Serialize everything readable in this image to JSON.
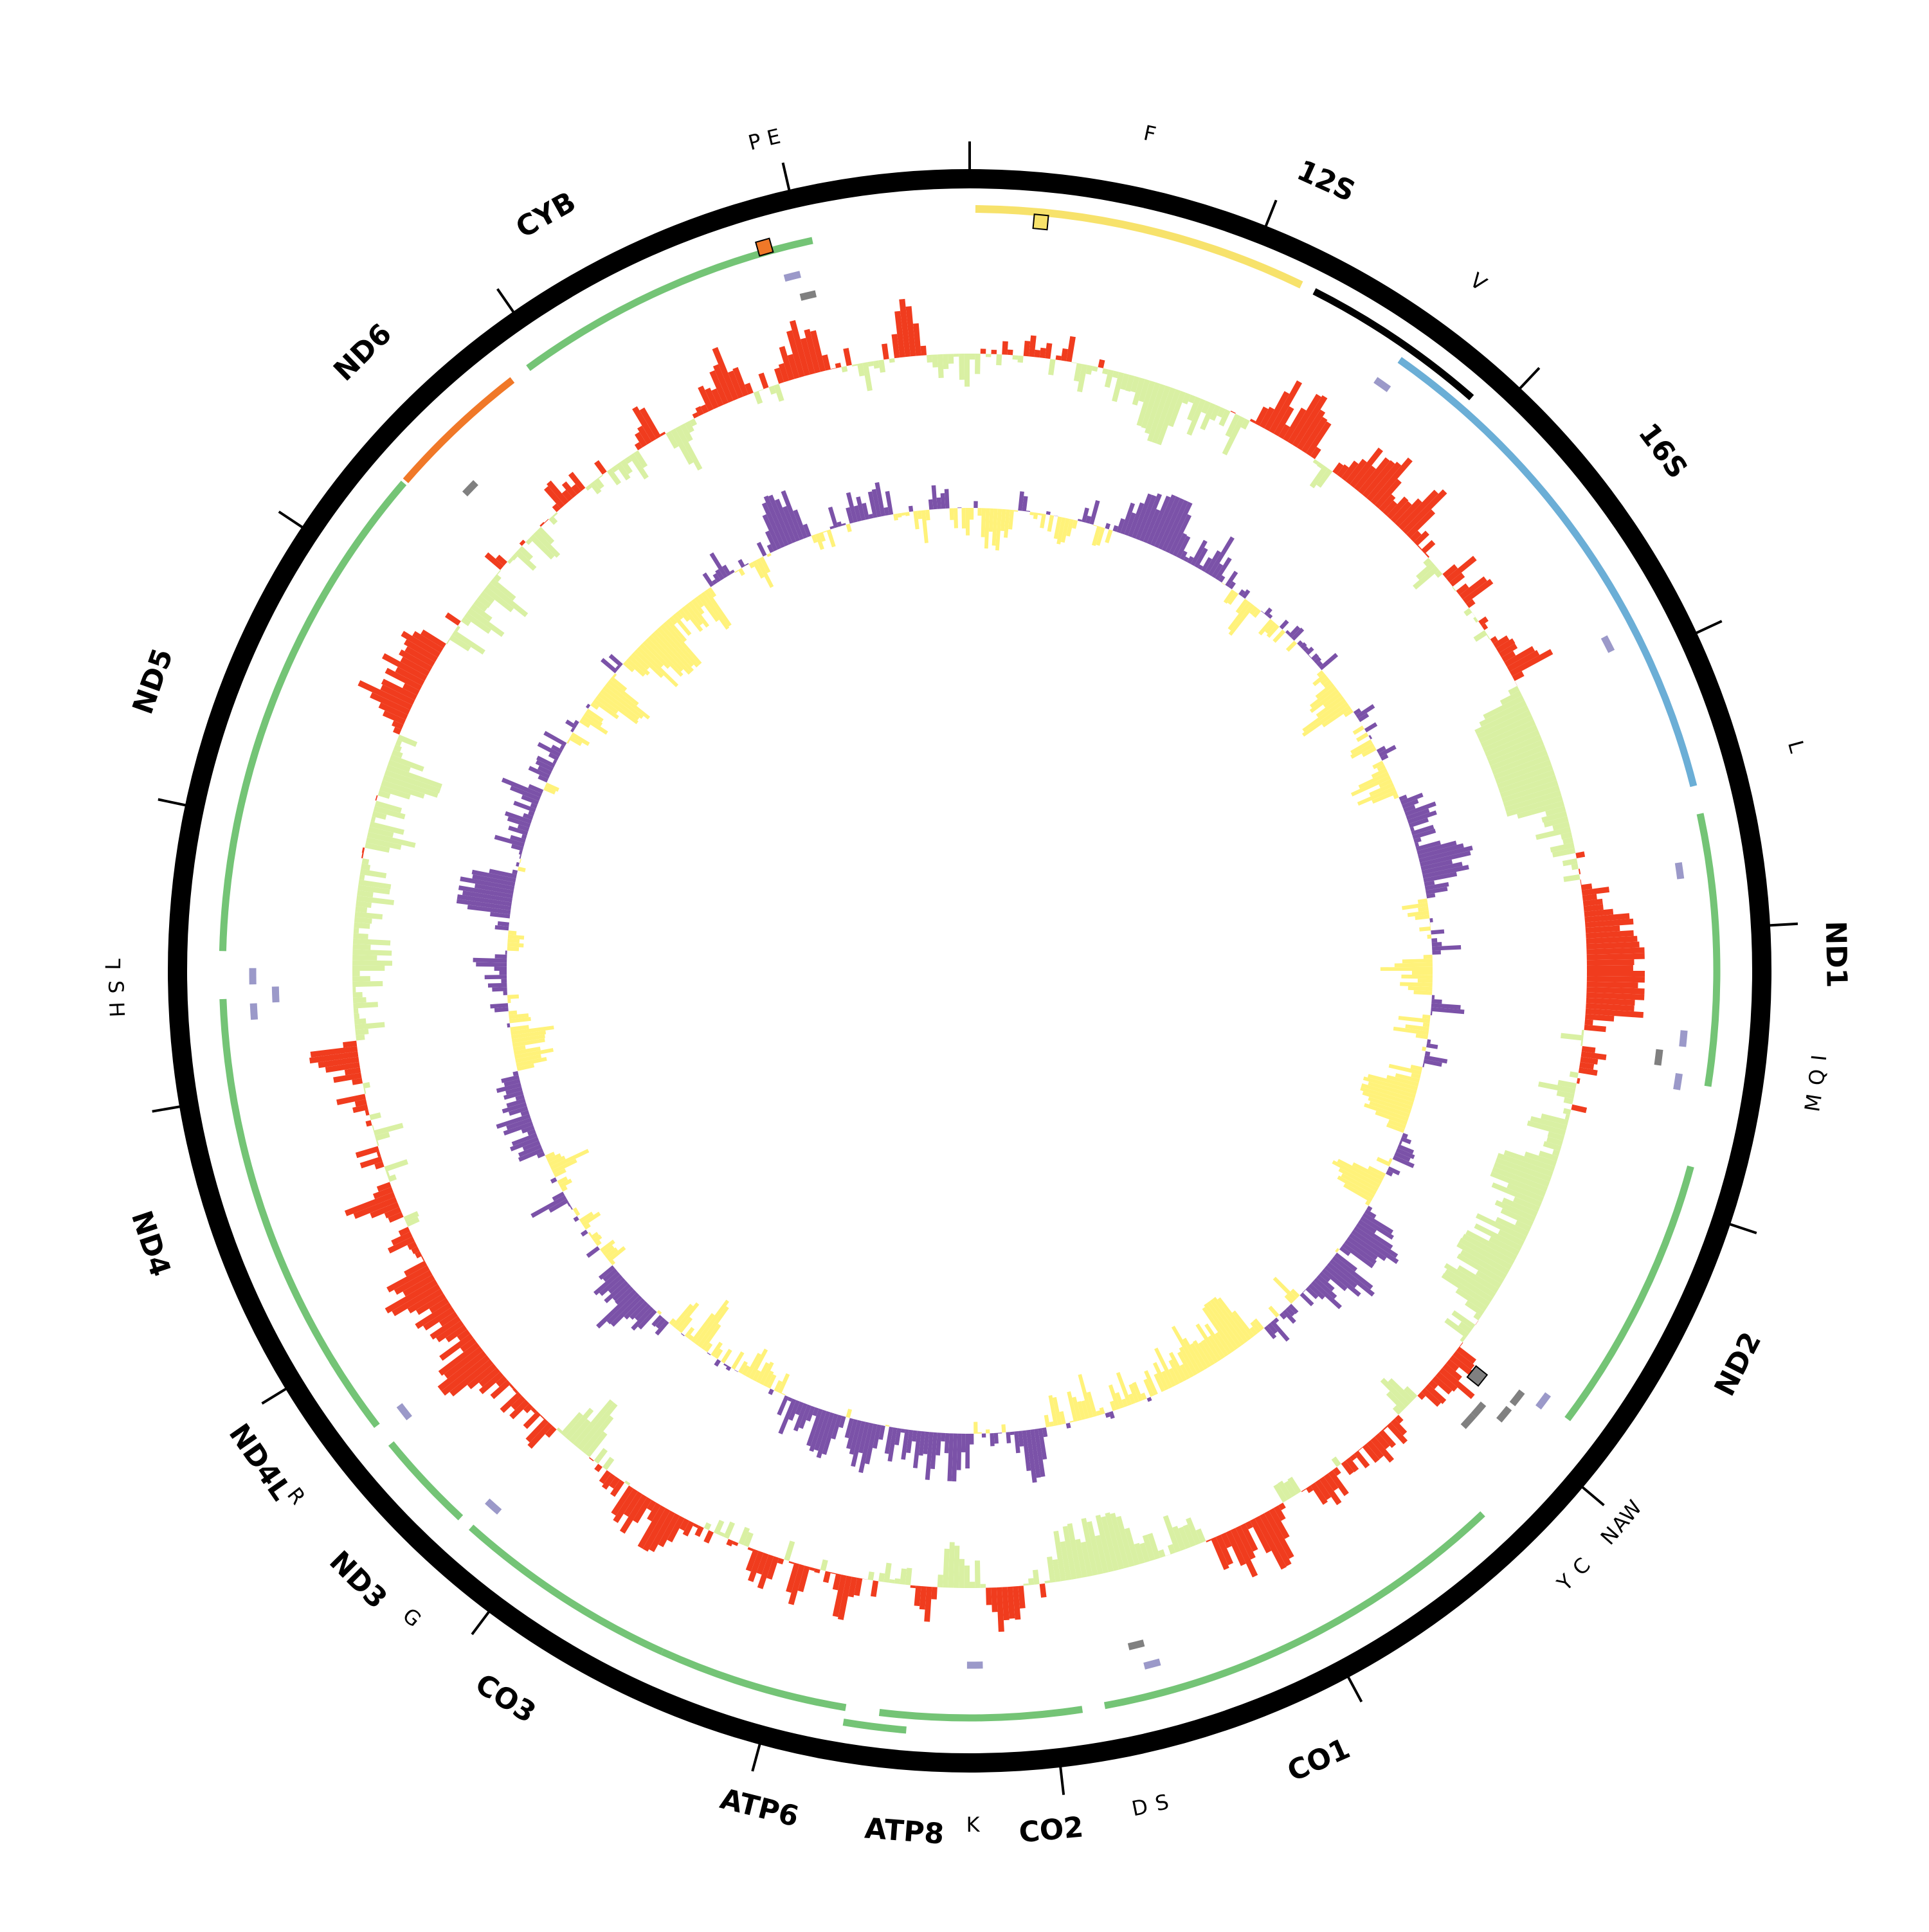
{
  "map": {
    "genome_length": 16600,
    "backbone_color": "#000000",
    "tick_positions": [
      0,
      1000,
      2000,
      3000,
      4000,
      5000,
      6000,
      7000,
      8000,
      9000,
      10000,
      11000,
      12000,
      13000,
      14000,
      15000,
      16000
    ]
  },
  "gene_labels": [
    {
      "text": "12S",
      "pos": 1120
    },
    {
      "text": "16S",
      "pos": 2450
    },
    {
      "text": "ND1",
      "pos": 4100
    },
    {
      "text": "ND2",
      "pos": 5400
    },
    {
      "text": "CO1",
      "pos": 7200
    },
    {
      "text": "CO2",
      "pos": 8050
    },
    {
      "text": "ATP8",
      "pos": 8500
    },
    {
      "text": "ATP6",
      "pos": 8950
    },
    {
      "text": "CO3",
      "pos": 9800
    },
    {
      "text": "ND3",
      "pos": 10380
    },
    {
      "text": "ND4L",
      "pos": 10850
    },
    {
      "text": "ND4",
      "pos": 11600
    },
    {
      "text": "ND5",
      "pos": 13350
    },
    {
      "text": "ND6",
      "pos": 14550
    },
    {
      "text": "CYB",
      "pos": 15250
    }
  ],
  "trna_labels": [
    {
      "text": "F",
      "pos": 560
    },
    {
      "text": "V",
      "pos": 1680
    },
    {
      "text": "L",
      "pos": 3450
    },
    {
      "text": "I",
      "pos": 4420
    },
    {
      "text": "Q",
      "pos": 4480
    },
    {
      "text": "M",
      "pos": 4560
    },
    {
      "text": "W",
      "pos": 5960
    },
    {
      "text": "A",
      "pos": 6010
    },
    {
      "text": "N",
      "pos": 6060
    },
    {
      "text": "C",
      "pos": 6190
    },
    {
      "text": "Y",
      "pos": 6260
    },
    {
      "text": "S",
      "pos": 7700
    },
    {
      "text": "D",
      "pos": 7770
    },
    {
      "text": "K",
      "pos": 8290
    },
    {
      "text": "G",
      "pos": 10180
    },
    {
      "text": "R",
      "pos": 10700
    },
    {
      "text": "H",
      "pos": 12330
    },
    {
      "text": "S",
      "pos": 12400
    },
    {
      "text": "L",
      "pos": 12470
    },
    {
      "text": "P",
      "pos": 15930
    },
    {
      "text": "E",
      "pos": 15990
    }
  ],
  "features": [
    {
      "kind": "control_region",
      "start": 20,
      "end": 1190,
      "ring": "outer",
      "color": "#f7e26b"
    },
    {
      "kind": "rRNA_12S",
      "start": 1240,
      "end": 1900,
      "ring": "outer",
      "color": "#000000"
    },
    {
      "kind": "rRNA_16S",
      "start": 1620,
      "end": 3490,
      "ring": "middle",
      "color": "#6baed6"
    },
    {
      "kind": "ND1",
      "start": 3590,
      "end": 4560,
      "ring": "middle",
      "color": "#74c476"
    },
    {
      "kind": "ND2",
      "start": 4850,
      "end": 5850,
      "ring": "middle",
      "color": "#74c476"
    },
    {
      "kind": "CO1",
      "start": 6300,
      "end": 7820,
      "ring": "middle",
      "color": "#74c476"
    },
    {
      "kind": "CO2",
      "start": 7900,
      "end": 8620,
      "ring": "middle",
      "color": "#74c476"
    },
    {
      "kind": "ATP8",
      "start": 8520,
      "end": 8740,
      "ring": "outer",
      "color": "#74c476"
    },
    {
      "kind": "ATP6",
      "start": 8740,
      "end": 9420,
      "ring": "middle",
      "color": "#74c476"
    },
    {
      "kind": "CO3",
      "start": 9420,
      "end": 10230,
      "ring": "middle",
      "color": "#74c476"
    },
    {
      "kind": "ND3",
      "start": 10280,
      "end": 10640,
      "ring": "middle",
      "color": "#74c476"
    },
    {
      "kind": "ND4L",
      "start": 10720,
      "end": 11000,
      "ring": "middle",
      "color": "#74c476"
    },
    {
      "kind": "ND4",
      "start": 10980,
      "end": 12350,
      "ring": "middle",
      "color": "#74c476"
    },
    {
      "kind": "ND5",
      "start": 12520,
      "end": 14330,
      "ring": "middle",
      "color": "#74c476"
    },
    {
      "kind": "ND6",
      "start": 14340,
      "end": 14860,
      "ring": "middle",
      "color": "#f07828"
    },
    {
      "kind": "CYB",
      "start": 14930,
      "end": 16040,
      "ring": "middle",
      "color": "#74c476"
    }
  ],
  "trna_marks": [
    {
      "pos": 1620,
      "ring": "trna_outer",
      "color": "#9b99c9"
    },
    {
      "pos": 2900,
      "ring": "trna_outer",
      "color": "#9b99c9"
    },
    {
      "pos": 3780,
      "ring": "trna_outer",
      "color": "#9b99c9"
    },
    {
      "pos": 4400,
      "ring": "trna_outer",
      "color": "#9b99c9"
    },
    {
      "pos": 4480,
      "ring": "trna_inner",
      "color": "#808080"
    },
    {
      "pos": 4560,
      "ring": "trna_outer",
      "color": "#9b99c9"
    },
    {
      "pos": 5850,
      "ring": "trna_outer",
      "color": "#9b99c9"
    },
    {
      "pos": 5900,
      "ring": "trna_inner",
      "color": "#808080"
    },
    {
      "pos": 5980,
      "ring": "trna_inner",
      "color": "#808080"
    },
    {
      "pos": 6030,
      "ring": "trna_inner2",
      "color": "#808080"
    },
    {
      "pos": 6090,
      "ring": "trna_inner2",
      "color": "#808080"
    },
    {
      "pos": 7620,
      "ring": "trna_outer",
      "color": "#9b99c9"
    },
    {
      "pos": 7660,
      "ring": "trna_inner",
      "color": "#808080"
    },
    {
      "pos": 8280,
      "ring": "trna_inner",
      "color": "#9b99c9"
    },
    {
      "pos": 10220,
      "ring": "trna_outer",
      "color": "#9b99c9"
    },
    {
      "pos": 10700,
      "ring": "trna_outer",
      "color": "#9b99c9"
    },
    {
      "pos": 12300,
      "ring": "trna_outer",
      "color": "#9b99c9"
    },
    {
      "pos": 12360,
      "ring": "trna_inner",
      "color": "#9b99c9"
    },
    {
      "pos": 12430,
      "ring": "trna_outer",
      "color": "#9b99c9"
    },
    {
      "pos": 14480,
      "ring": "trna_inner",
      "color": "#808080"
    },
    {
      "pos": 15940,
      "ring": "trna_outer",
      "color": "#9b99c9"
    },
    {
      "pos": 15980,
      "ring": "trna_inner",
      "color": "#808080"
    }
  ],
  "origin_marks": [
    {
      "pos": 250,
      "color": "#f7e26b"
    },
    {
      "pos": 15870,
      "color": "#f07828"
    },
    {
      "pos": 5930,
      "color": "#808080"
    }
  ],
  "tracks": {
    "gc_skew": {
      "positive_color": "#f03c1e",
      "negative_color": "#d9f0a3",
      "line_color": "#f03c1e"
    },
    "at_skew": {
      "positive_color": "#7b52a8",
      "negative_color": "#fff27a",
      "line_color": "#c0a020"
    }
  }
}
